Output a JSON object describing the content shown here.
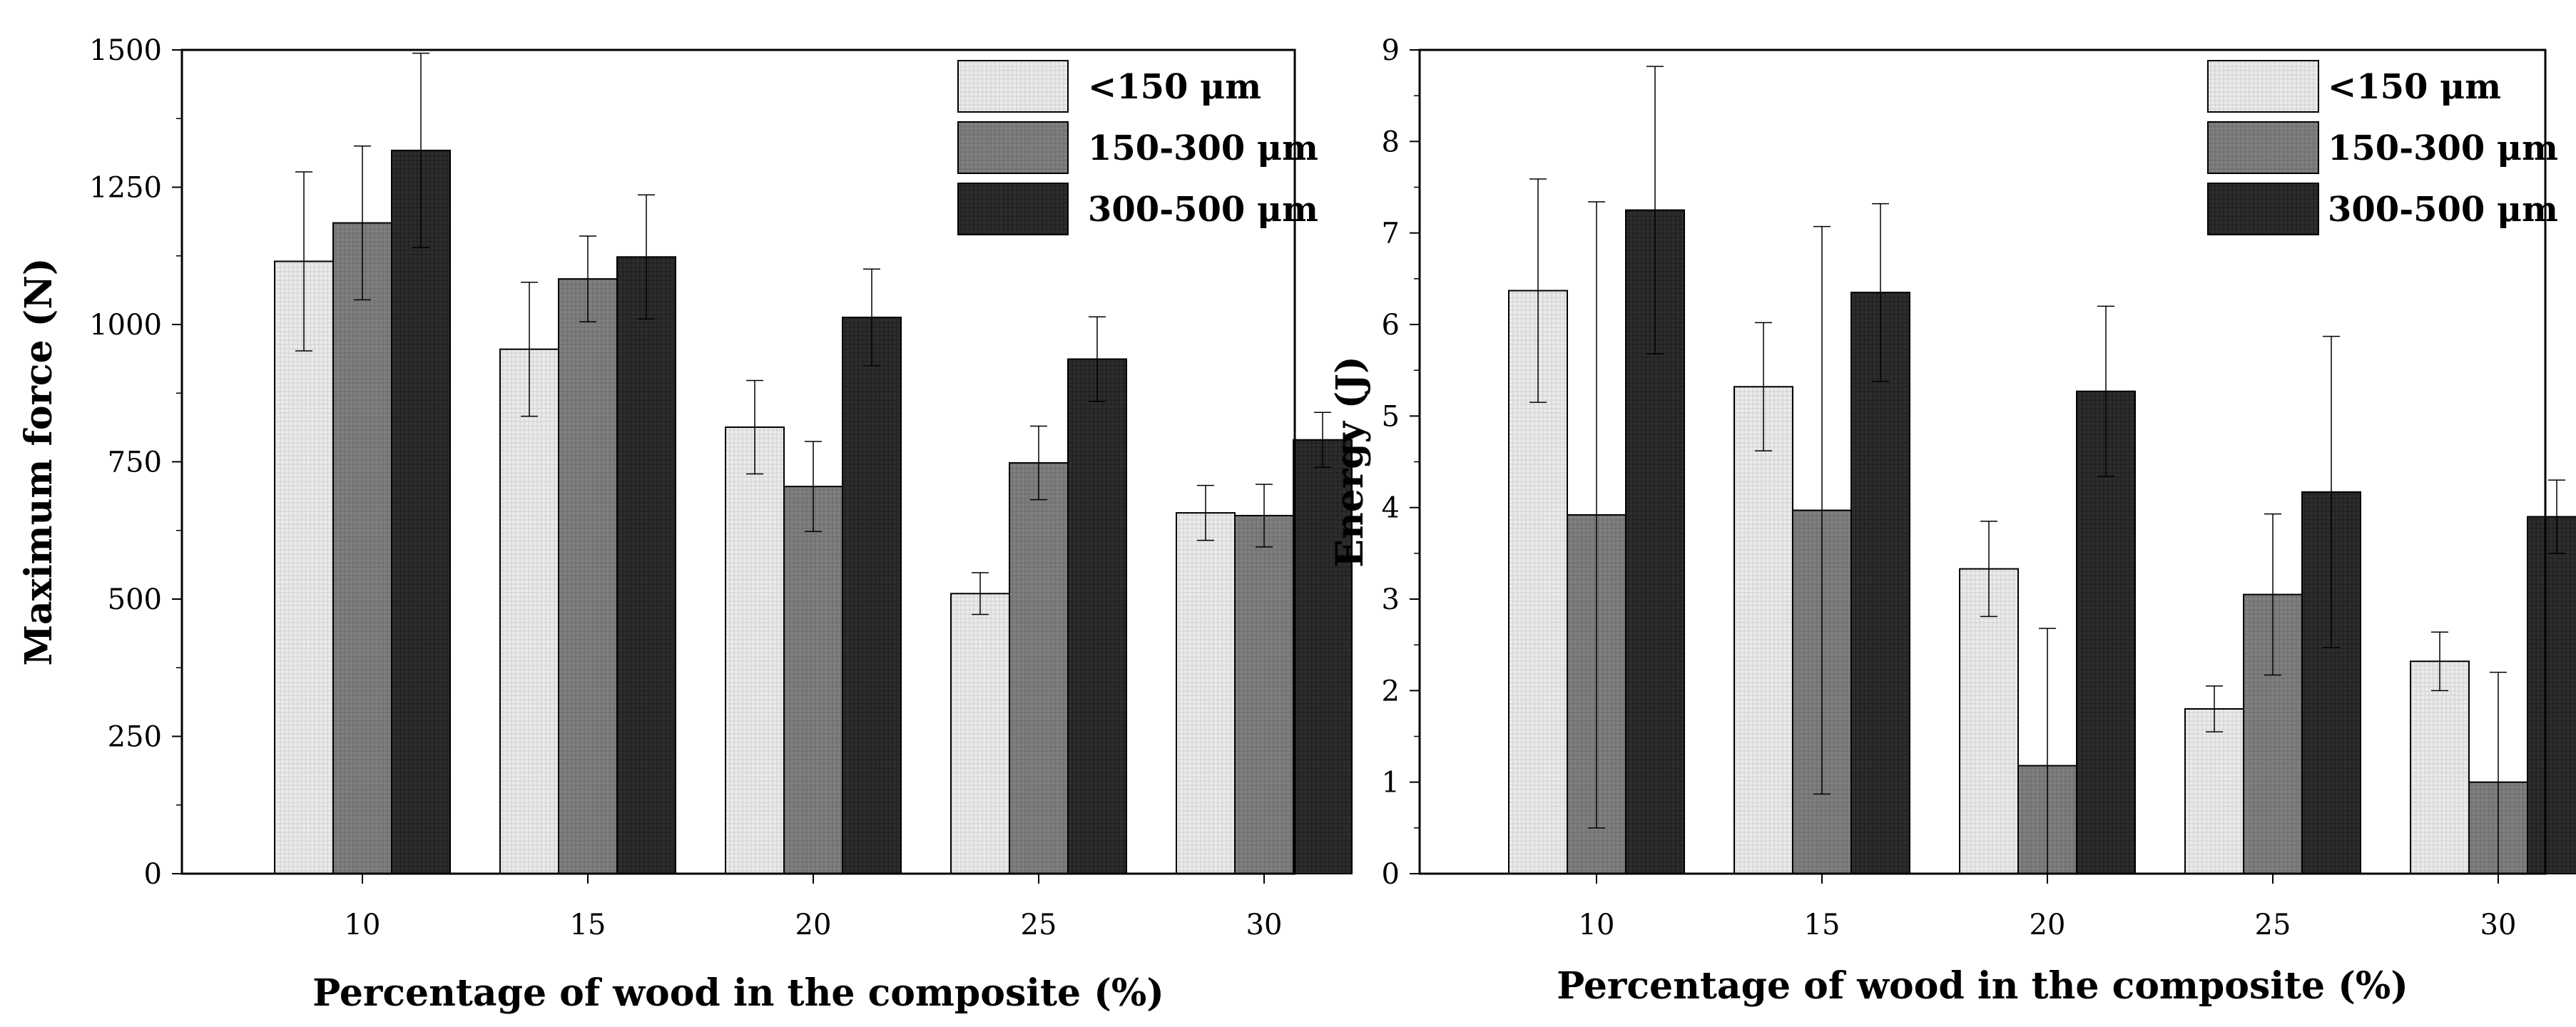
{
  "chart_data": [
    {
      "type": "bar",
      "title": "",
      "xlabel": "Percentage of wood in the composite (%)",
      "ylabel": "Maximum force (N)",
      "categories": [
        "10",
        "15",
        "20",
        "25",
        "30"
      ],
      "ylim": [
        0,
        1500
      ],
      "yticks": [
        "0",
        "250",
        "500",
        "750",
        "1000",
        "1250",
        "1500"
      ],
      "legend_position": "top-right",
      "series": [
        {
          "name": "<150 μm",
          "color": "#e6e6e6",
          "values": [
            1115,
            955,
            813,
            510,
            657
          ],
          "errors": [
            163,
            122,
            85,
            38,
            50
          ]
        },
        {
          "name": "150-300 μm",
          "color": "#7f7f7f",
          "values": [
            1185,
            1083,
            705,
            748,
            652
          ],
          "errors": [
            140,
            78,
            82,
            67,
            57
          ]
        },
        {
          "name": "300-500 μm",
          "color": "#2b2b2b",
          "values": [
            1317,
            1123,
            1013,
            937,
            790
          ],
          "errors": [
            177,
            113,
            88,
            77,
            50
          ]
        }
      ]
    },
    {
      "type": "bar",
      "title": "",
      "xlabel": "Percentage of wood in the composite (%)",
      "ylabel": "Energy (J)",
      "categories": [
        "10",
        "15",
        "20",
        "25",
        "30"
      ],
      "ylim": [
        0,
        9
      ],
      "yticks": [
        "0",
        "1",
        "2",
        "3",
        "4",
        "5",
        "6",
        "7",
        "8",
        "9"
      ],
      "legend_position": "top-right",
      "series": [
        {
          "name": "<150 μm",
          "color": "#e6e6e6",
          "values": [
            6.37,
            5.32,
            3.33,
            1.8,
            2.32
          ],
          "errors": [
            1.22,
            0.7,
            0.52,
            0.25,
            0.32
          ]
        },
        {
          "name": "150-300 μm",
          "color": "#7f7f7f",
          "values": [
            3.92,
            3.97,
            1.18,
            3.05,
            1.0
          ],
          "errors": [
            3.42,
            3.1,
            1.5,
            0.88,
            1.2
          ]
        },
        {
          "name": "300-500 μm",
          "color": "#2b2b2b",
          "values": [
            7.25,
            6.35,
            5.27,
            4.17,
            3.9
          ],
          "errors": [
            1.57,
            0.97,
            0.93,
            1.7,
            0.4
          ]
        }
      ]
    }
  ]
}
